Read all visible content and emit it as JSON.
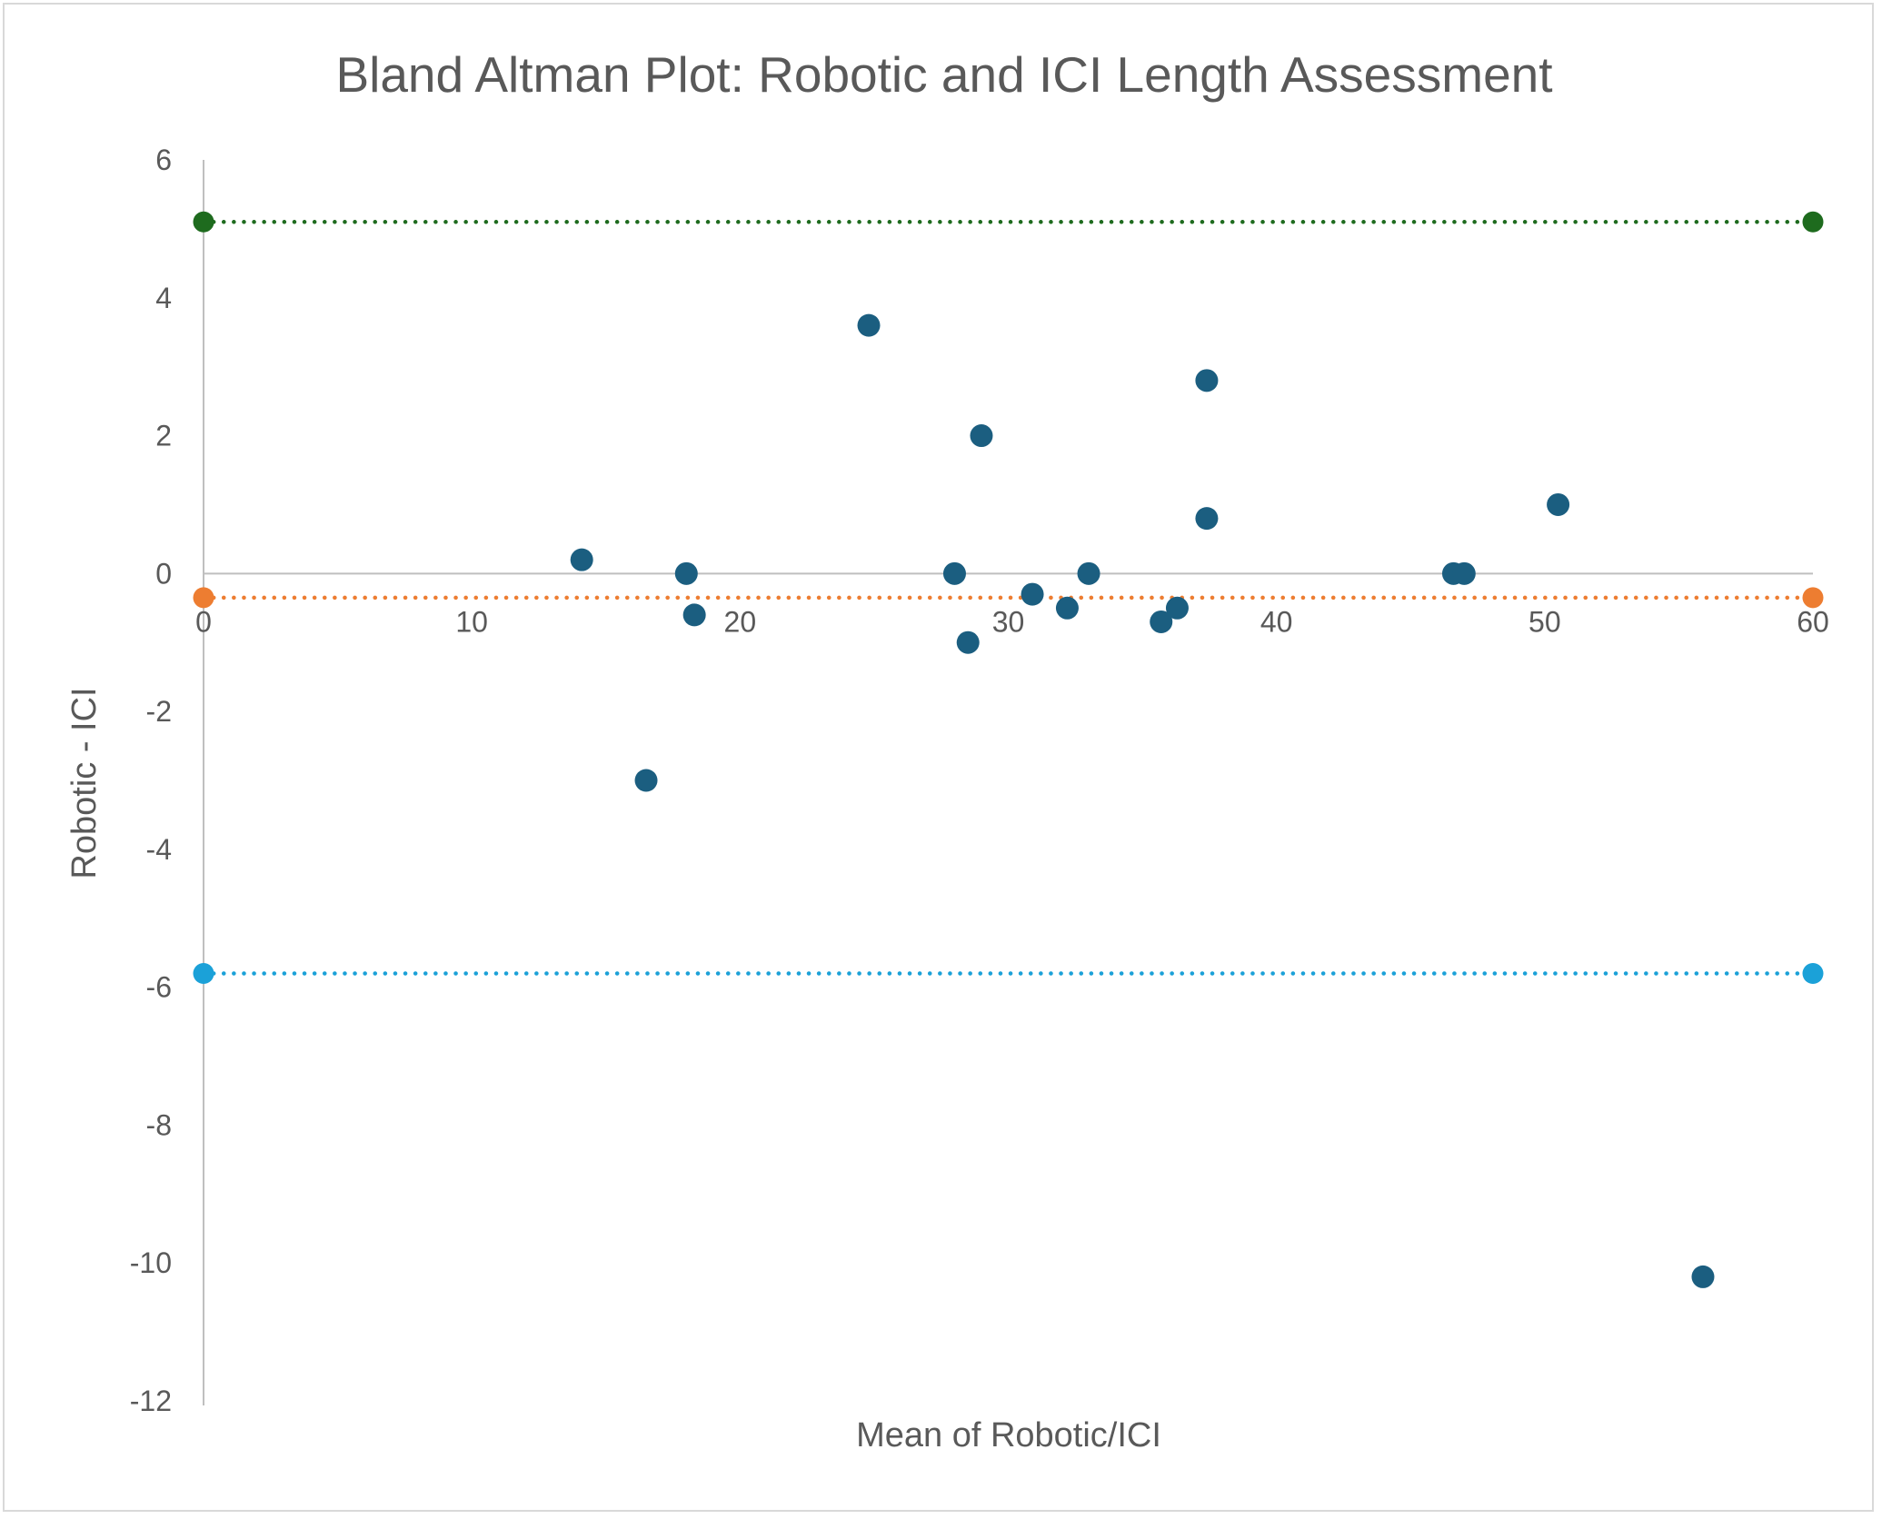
{
  "chart_data": {
    "type": "scatter",
    "title": "Bland Altman Plot: Robotic and ICI Length Assessment",
    "xlabel": "Mean of Robotic/ICI",
    "ylabel": "Robotic - ICI",
    "xlim": [
      0,
      60
    ],
    "ylim": [
      -12,
      6
    ],
    "x_ticks": [
      0,
      10,
      20,
      30,
      40,
      50,
      60
    ],
    "y_ticks": [
      6,
      4,
      2,
      0,
      -2,
      -4,
      -6,
      -8,
      -10,
      -12
    ],
    "grid": false,
    "legend": "none",
    "series": [
      {
        "color": "#1b5e80",
        "points": [
          [
            14.1,
            0.2
          ],
          [
            16.5,
            -3.0
          ],
          [
            18.0,
            0.0
          ],
          [
            18.3,
            -0.6
          ],
          [
            24.8,
            3.6
          ],
          [
            28.0,
            0.0
          ],
          [
            28.5,
            -1.0
          ],
          [
            29.0,
            2.0
          ],
          [
            30.9,
            -0.3
          ],
          [
            32.2,
            -0.5
          ],
          [
            33.0,
            0.0
          ],
          [
            35.7,
            -0.7
          ],
          [
            36.3,
            -0.5
          ],
          [
            37.4,
            2.8
          ],
          [
            37.4,
            0.8
          ],
          [
            46.6,
            0.0
          ],
          [
            47.0,
            0.0
          ],
          [
            50.5,
            1.0
          ],
          [
            55.9,
            -10.2
          ]
        ]
      },
      {
        "line_style": "dotted",
        "color": "#1e6b1e",
        "points": [
          [
            0,
            5.1
          ],
          [
            60,
            5.1
          ]
        ]
      },
      {
        "line_style": "dotted",
        "color": "#ed7d31",
        "points": [
          [
            0,
            -0.35
          ],
          [
            60,
            -0.35
          ]
        ]
      },
      {
        "line_style": "dotted",
        "color": "#1ba1d8",
        "points": [
          [
            0,
            -5.8
          ],
          [
            60,
            -5.8
          ]
        ]
      }
    ]
  }
}
